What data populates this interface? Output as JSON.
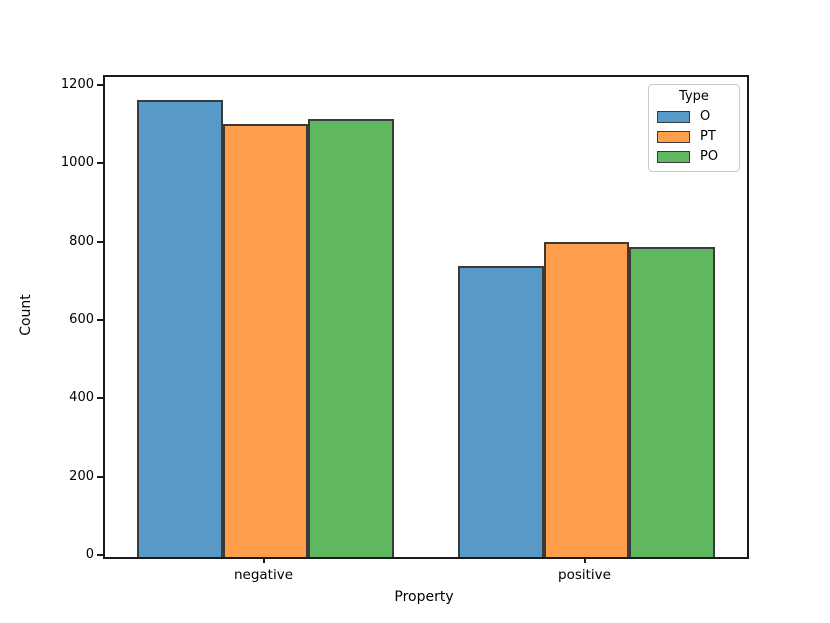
{
  "figure": {
    "background": "#ffffff",
    "frame_color": "#1a1a1a"
  },
  "chart_data": {
    "type": "bar",
    "title": "",
    "xlabel": "Property",
    "ylabel": "Count",
    "categories": [
      "negative",
      "positive"
    ],
    "series": [
      {
        "name": "O",
        "values": [
          1166,
          743
        ],
        "fill": "#5799C7",
        "edge": "#3A3A3A"
      },
      {
        "name": "PT",
        "values": [
          1105,
          805
        ],
        "fill": "#FF9E4A",
        "edge": "#3A3A3A"
      },
      {
        "name": "PO",
        "values": [
          1117,
          792
        ],
        "fill": "#5FB75F",
        "edge": "#3A3A3A"
      }
    ],
    "ylim": [
      0,
      1225
    ],
    "yticks": [
      0,
      200,
      400,
      600,
      800,
      1000,
      1200
    ],
    "xlim": [
      -0.5,
      1.5
    ],
    "bar_group_width": 0.8,
    "grid": false,
    "legend": {
      "title": "Type",
      "position": "upper right",
      "entries": [
        "O",
        "PT",
        "PO"
      ]
    }
  }
}
